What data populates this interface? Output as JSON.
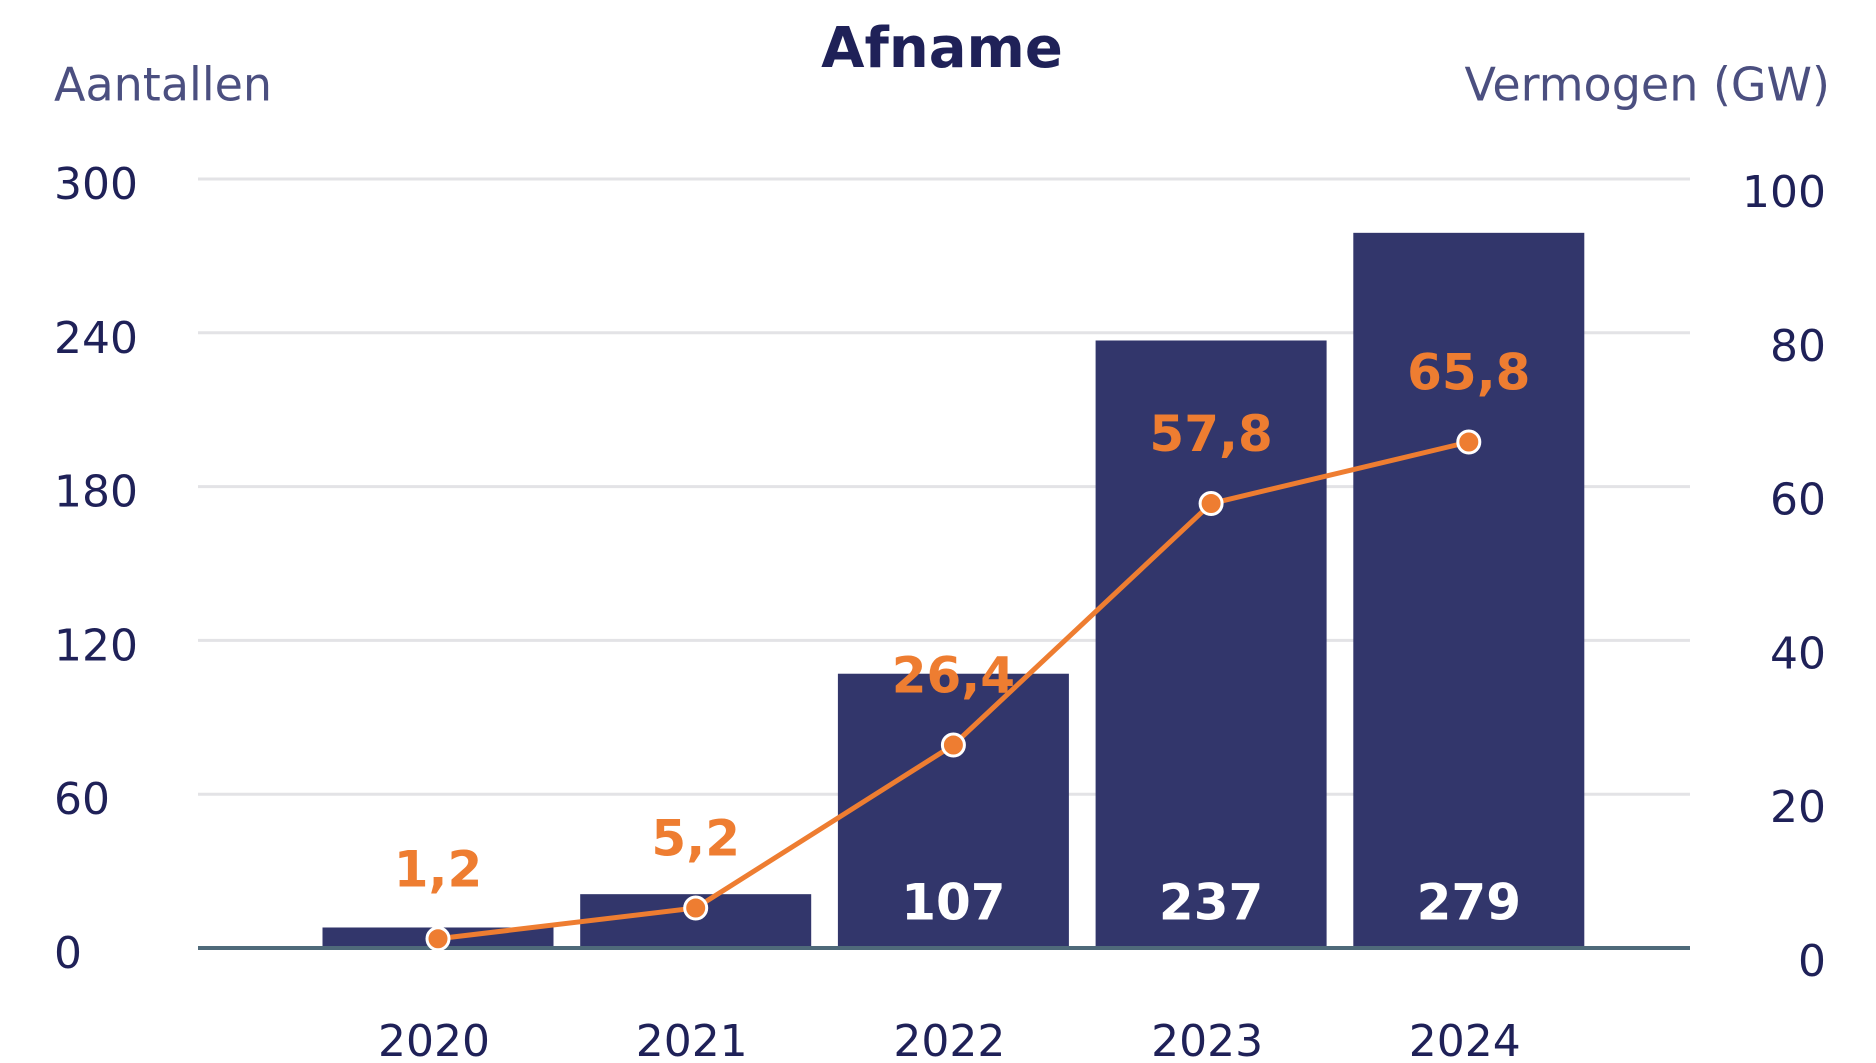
{
  "chart_data": {
    "type": "bar_line",
    "title": "Afname",
    "y_label": "Aantallen",
    "y2_label": "Vermogen (GW)",
    "categories": [
      "2020",
      "2021",
      "2022",
      "2023",
      "2024"
    ],
    "series": [
      {
        "name": "Aantallen",
        "type": "bar",
        "color": "#32366b",
        "values": [
          8,
          21,
          107,
          237,
          279
        ],
        "value_labels": [
          null,
          null,
          "107",
          "237",
          "279"
        ]
      },
      {
        "name": "Vermogen (GW)",
        "type": "line",
        "axis": "y2",
        "color": "#ee7d31",
        "values": [
          1.2,
          5.2,
          26.4,
          57.8,
          65.8
        ],
        "value_labels": [
          "1,2",
          "5,2",
          "26,4",
          "57,8",
          "65,8"
        ]
      }
    ],
    "ylim": [
      0,
      300
    ],
    "yticks": [
      0,
      60,
      120,
      180,
      240,
      300
    ],
    "y2lim": [
      0,
      100
    ],
    "y2ticks": [
      0,
      20,
      40,
      60,
      80,
      100
    ],
    "grid": true
  }
}
